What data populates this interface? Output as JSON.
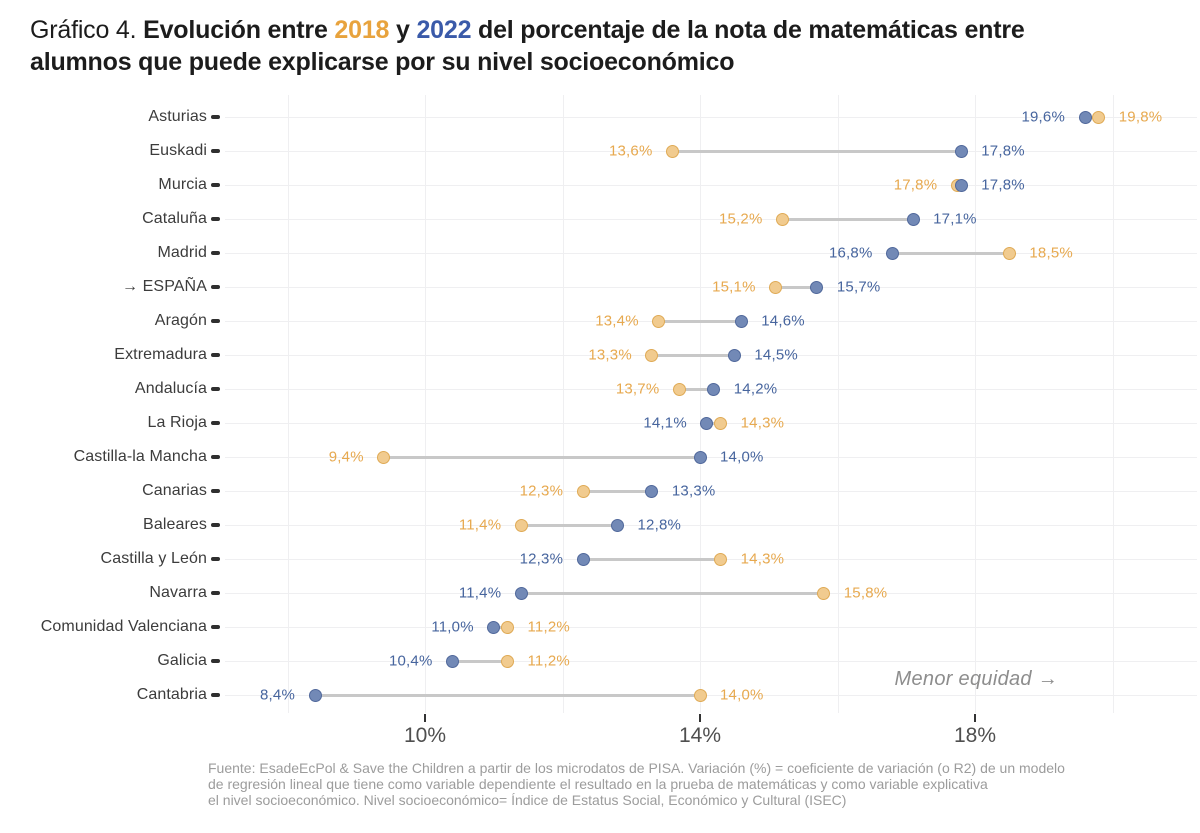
{
  "title": {
    "prefix": "Gráfico 4. ",
    "part1": "Evolución entre ",
    "year_2018": "2018",
    "conj": " y ",
    "year_2022": "2022",
    "part2": " del porcentaje de la nota de matemáticas entre",
    "line2": "alumnos que puede explicarse por su nivel socioeconómico"
  },
  "colors": {
    "title_2018_orange": "#E8A33D",
    "title_2022_blue": "#3A5AA9",
    "value_text_orange": "#E7A94F",
    "value_text_blue": "#47659E",
    "dot_2018_fill": "#F1CB8F",
    "dot_2018_stroke": "#DFAA55",
    "dot_2022_fill": "#7289B6",
    "dot_2022_stroke": "#50689B",
    "connector_gray": "#C8C8C8",
    "gridline_gray": "#EFEFF1",
    "category_tick_dark": "#2F2F2F",
    "axis_tick_dark": "#333333"
  },
  "chart_data": {
    "type": "scatter",
    "subtype": "dumbbell",
    "title": "Gráfico 4. Evolución entre 2018 y 2022 del porcentaje de la nota de matemáticas entre alumnos que puede explicarse por su nivel socioeconómico",
    "xlabel": "",
    "ylabel": "",
    "xlim_pct": [
      7.4,
      21.3
    ],
    "x_gridlines": [
      8,
      10,
      12,
      14,
      16,
      18,
      20
    ],
    "x_ticks": [
      {
        "value": 10,
        "label": "10%"
      },
      {
        "value": 14,
        "label": "14%"
      },
      {
        "value": 18,
        "label": "18%"
      }
    ],
    "annotation": "Menor equidad →",
    "legend": [
      {
        "name": "2018",
        "color": "#E8A33D"
      },
      {
        "name": "2022",
        "color": "#3A5AA9"
      }
    ],
    "rows": [
      {
        "category": "Asturias",
        "v2018": 19.8,
        "v2022": 19.6,
        "label2018": "19,8%",
        "label2022": "19,6%"
      },
      {
        "category": "Euskadi",
        "v2018": 13.6,
        "v2022": 17.8,
        "label2018": "13,6%",
        "label2022": "17,8%"
      },
      {
        "category": "Murcia",
        "v2018": 17.8,
        "v2022": 17.8,
        "label2018": "17,8%",
        "label2022": "17,8%"
      },
      {
        "category": "Cataluña",
        "v2018": 15.2,
        "v2022": 17.1,
        "label2018": "15,2%",
        "label2022": "17,1%"
      },
      {
        "category": "Madrid",
        "v2018": 18.5,
        "v2022": 16.8,
        "label2018": "18,5%",
        "label2022": "16,8%"
      },
      {
        "category": "→ ESPAÑA",
        "v2018": 15.1,
        "v2022": 15.7,
        "label2018": "15,1%",
        "label2022": "15,7%"
      },
      {
        "category": "Aragón",
        "v2018": 13.4,
        "v2022": 14.6,
        "label2018": "13,4%",
        "label2022": "14,6%"
      },
      {
        "category": "Extremadura",
        "v2018": 13.3,
        "v2022": 14.5,
        "label2018": "13,3%",
        "label2022": "14,5%"
      },
      {
        "category": "Andalucía",
        "v2018": 13.7,
        "v2022": 14.2,
        "label2018": "13,7%",
        "label2022": "14,2%"
      },
      {
        "category": "La Rioja",
        "v2018": 14.3,
        "v2022": 14.1,
        "label2018": "14,3%",
        "label2022": "14,1%"
      },
      {
        "category": "Castilla-la Mancha",
        "v2018": 9.4,
        "v2022": 14.0,
        "label2018": "9,4%",
        "label2022": "14,0%"
      },
      {
        "category": "Canarias",
        "v2018": 12.3,
        "v2022": 13.3,
        "label2018": "12,3%",
        "label2022": "13,3%"
      },
      {
        "category": "Baleares",
        "v2018": 11.4,
        "v2022": 12.8,
        "label2018": "11,4%",
        "label2022": "12,8%"
      },
      {
        "category": "Castilla y León",
        "v2018": 14.3,
        "v2022": 12.3,
        "label2018": "14,3%",
        "label2022": "12,3%"
      },
      {
        "category": "Navarra",
        "v2018": 15.8,
        "v2022": 11.4,
        "label2018": "15,8%",
        "label2022": "11,4%"
      },
      {
        "category": "Comunidad Valenciana",
        "v2018": 11.2,
        "v2022": 11.0,
        "label2018": "11,2%",
        "label2022": "11,0%"
      },
      {
        "category": "Galicia",
        "v2018": 11.2,
        "v2022": 10.4,
        "label2018": "11,2%",
        "label2022": "10,4%"
      },
      {
        "category": "Cantabria",
        "v2018": 14.0,
        "v2022": 8.4,
        "label2018": "14,0%",
        "label2022": "8,4%"
      }
    ]
  },
  "footer": {
    "line1": "Fuente: EsadeEcPol & Save the Children a partir de los microdatos de PISA. Variación (%) = coeficiente de variación (o R2) de un modelo",
    "line2": "de regresión lineal que tiene como variable dependiente el resultado en la prueba de matemáticas y como variable explicativa",
    "line3": "el nivel socioeconómico. Nivel socioeconómico= Índice de Estatus Social, Económico y Cultural (ISEC)"
  }
}
